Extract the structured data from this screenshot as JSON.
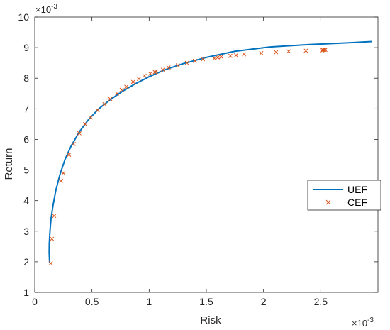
{
  "chart_data": {
    "type": "line",
    "xlabel": "Risk",
    "ylabel": "Return",
    "x_exponent_label": "×10",
    "x_exponent_power": "-3",
    "y_exponent_label": "×10",
    "y_exponent_power": "-3",
    "xlim": [
      0,
      3
    ],
    "ylim": [
      1,
      10
    ],
    "xticks": [
      0,
      0.5,
      1,
      1.5,
      2,
      2.5
    ],
    "xtick_labels": [
      "0",
      "0.5",
      "1",
      "1.5",
      "2",
      "2.5"
    ],
    "yticks": [
      1,
      2,
      3,
      4,
      5,
      6,
      7,
      8,
      9,
      10
    ],
    "ytick_labels": [
      "1",
      "2",
      "3",
      "4",
      "5",
      "6",
      "7",
      "8",
      "9",
      "10"
    ],
    "grid": false,
    "legend_position": "right",
    "series": [
      {
        "name": "UEF",
        "style": "line",
        "color": "#0072BD",
        "x": [
          0.13,
          0.126,
          0.127,
          0.133,
          0.142,
          0.16,
          0.185,
          0.22,
          0.265,
          0.32,
          0.39,
          0.47,
          0.56,
          0.66,
          0.77,
          0.88,
          1.0,
          1.14,
          1.3,
          1.5,
          1.75,
          2.05,
          2.4,
          2.7,
          2.95
        ],
        "y": [
          1.95,
          2.3,
          2.6,
          3.0,
          3.4,
          3.85,
          4.35,
          4.85,
          5.35,
          5.8,
          6.25,
          6.65,
          7.0,
          7.3,
          7.58,
          7.82,
          8.05,
          8.28,
          8.48,
          8.68,
          8.88,
          9.02,
          9.1,
          9.15,
          9.2
        ]
      },
      {
        "name": "CEF",
        "style": "scatter",
        "color": "#D95319",
        "x": [
          0.14,
          0.15,
          0.17,
          0.23,
          0.25,
          0.3,
          0.34,
          0.39,
          0.44,
          0.49,
          0.55,
          0.61,
          0.66,
          0.72,
          0.76,
          0.8,
          0.86,
          0.91,
          0.96,
          1.01,
          1.05,
          1.06,
          1.12,
          1.17,
          1.25,
          1.33,
          1.4,
          1.47,
          1.57,
          1.6,
          1.63,
          1.71,
          1.76,
          1.83,
          1.98,
          2.11,
          2.22,
          2.37,
          2.51,
          2.52,
          2.53,
          2.54
        ],
        "y": [
          1.95,
          2.75,
          3.5,
          4.65,
          4.9,
          5.5,
          5.85,
          6.2,
          6.5,
          6.72,
          6.95,
          7.15,
          7.32,
          7.5,
          7.62,
          7.72,
          7.88,
          7.98,
          8.08,
          8.15,
          8.2,
          8.22,
          8.28,
          8.35,
          8.42,
          8.5,
          8.57,
          8.62,
          8.65,
          8.68,
          8.7,
          8.73,
          8.75,
          8.78,
          8.82,
          8.85,
          8.88,
          8.9,
          8.91,
          8.92,
          8.93,
          8.93
        ]
      }
    ]
  }
}
